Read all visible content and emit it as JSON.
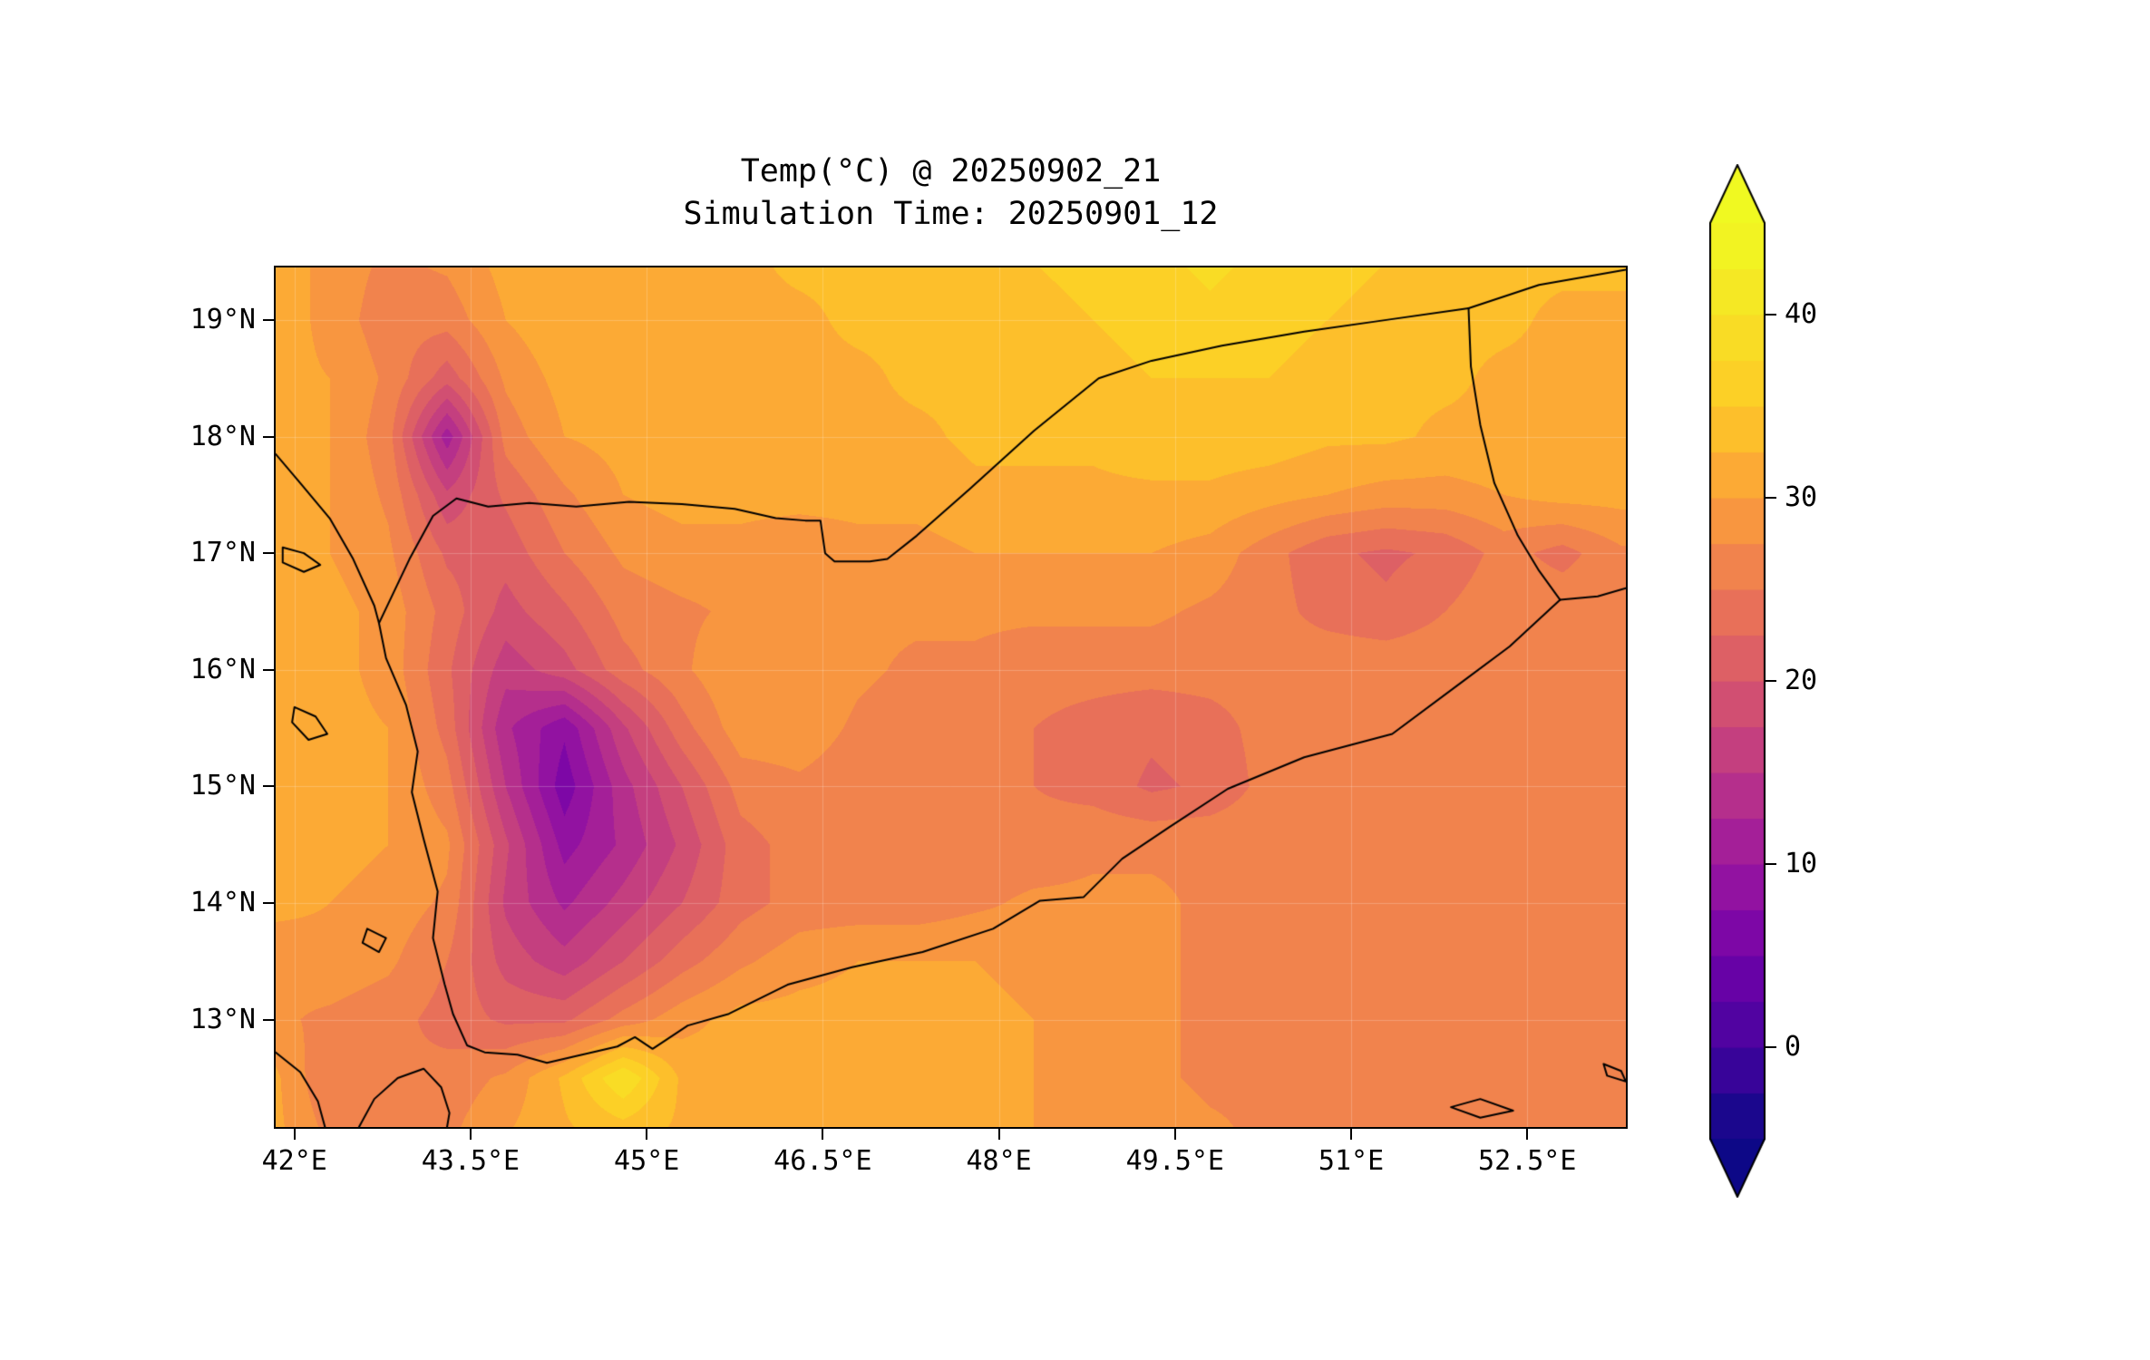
{
  "chart_data": {
    "type": "heatmap",
    "title": "Temp(°C) @ 20250902_21",
    "subtitle": "Simulation Time: 20250901_12",
    "variable": "Temperature (°C)",
    "valid_time_label": "20250902_21",
    "simulation_time_label": "20250901_12",
    "extent": {
      "lon_min": 41.84,
      "lon_max": 53.34,
      "lat_min": 12.08,
      "lat_max": 19.45
    },
    "x_ticks": [
      {
        "value": 42.0,
        "label": "42°E"
      },
      {
        "value": 43.5,
        "label": "43.5°E"
      },
      {
        "value": 45.0,
        "label": "45°E"
      },
      {
        "value": 46.5,
        "label": "46.5°E"
      },
      {
        "value": 48.0,
        "label": "48°E"
      },
      {
        "value": 49.5,
        "label": "49.5°E"
      },
      {
        "value": 51.0,
        "label": "51°E"
      },
      {
        "value": 52.5,
        "label": "52.5°E"
      }
    ],
    "y_ticks": [
      {
        "value": 19.0,
        "label": "19°N"
      },
      {
        "value": 18.0,
        "label": "18°N"
      },
      {
        "value": 17.0,
        "label": "17°N"
      },
      {
        "value": 16.0,
        "label": "16°N"
      },
      {
        "value": 15.0,
        "label": "15°N"
      },
      {
        "value": 14.0,
        "label": "14°N"
      },
      {
        "value": 13.0,
        "label": "13°N"
      }
    ],
    "colorbar": {
      "vmin": -5,
      "vmax": 45,
      "step": 2.5,
      "extend": "both",
      "ticks": [
        {
          "value": 40,
          "label": "40"
        },
        {
          "value": 30,
          "label": "30"
        },
        {
          "value": 20,
          "label": "20"
        },
        {
          "value": 10,
          "label": "10"
        },
        {
          "value": 0,
          "label": "0"
        }
      ]
    },
    "colormap_stops": [
      [
        0.0,
        "#0d0887"
      ],
      [
        0.1,
        "#46039f"
      ],
      [
        0.2,
        "#7201a8"
      ],
      [
        0.3,
        "#9c179e"
      ],
      [
        0.4,
        "#bd3786"
      ],
      [
        0.5,
        "#d8576b"
      ],
      [
        0.6,
        "#ed7953"
      ],
      [
        0.7,
        "#fb9f3a"
      ],
      [
        0.8,
        "#fdca26"
      ],
      [
        0.9,
        "#f7e225"
      ],
      [
        1.0,
        "#f0f921"
      ]
    ],
    "grid": {
      "lon_start": 41.8,
      "lon_step": 0.5,
      "lat_start": 19.5,
      "lat_step": -0.5,
      "ncols": 24,
      "nrows": 16,
      "values": [
        [
          32,
          29,
          27,
          28,
          31,
          32,
          32,
          32,
          32,
          33,
          33,
          33,
          34,
          35,
          36,
          37,
          38,
          37,
          36,
          35,
          34,
          33,
          33,
          33
        ],
        [
          32,
          29,
          26,
          26,
          30,
          32,
          32,
          32,
          32,
          32,
          33,
          33,
          33,
          34,
          35,
          36,
          37,
          36,
          35,
          34,
          33,
          33,
          32,
          32
        ],
        [
          31,
          30,
          27,
          21,
          28,
          31,
          32,
          32,
          32,
          32,
          32,
          33,
          33,
          33,
          34,
          35,
          35,
          35,
          34,
          33,
          33,
          32,
          32,
          32
        ],
        [
          31,
          30,
          26,
          11,
          26,
          30,
          31,
          32,
          32,
          32,
          32,
          32,
          33,
          33,
          33,
          34,
          34,
          34,
          33,
          33,
          32,
          32,
          32,
          32
        ],
        [
          31,
          30,
          27,
          18,
          23,
          27,
          30,
          31,
          31,
          31,
          31,
          31,
          32,
          32,
          32,
          32,
          32,
          31,
          30,
          29,
          29,
          30,
          31,
          31
        ],
        [
          31,
          30,
          28,
          22,
          21,
          25,
          28,
          29,
          29,
          28,
          29,
          29,
          30,
          30,
          30,
          30,
          29,
          26,
          23,
          22,
          23,
          26,
          24,
          27
        ],
        [
          31,
          31,
          29,
          24,
          19,
          22,
          26,
          27,
          28,
          28,
          28,
          28,
          28,
          28,
          28,
          28,
          27,
          26,
          24,
          23,
          25,
          27,
          27,
          27
        ],
        [
          31,
          31,
          29,
          23,
          16,
          19,
          24,
          27,
          30,
          30,
          28,
          27,
          27,
          26,
          26,
          26,
          26,
          26,
          27,
          27,
          27,
          27,
          27,
          27
        ],
        [
          32,
          31,
          30,
          24,
          13,
          8,
          17,
          24,
          29,
          29,
          27,
          26,
          26,
          25,
          24,
          23,
          24,
          26,
          27,
          27,
          27,
          27,
          27,
          27
        ],
        [
          32,
          31,
          30,
          26,
          15,
          6,
          14,
          20,
          26,
          27,
          26,
          25,
          25,
          25,
          24,
          22,
          23,
          26,
          27,
          27,
          27,
          27,
          27,
          27
        ],
        [
          32,
          31,
          30,
          28,
          18,
          9,
          13,
          18,
          24,
          26,
          26,
          25,
          26,
          26,
          27,
          27,
          27,
          27,
          27,
          27,
          27,
          27,
          27,
          27
        ],
        [
          31,
          30,
          29,
          27,
          17,
          12,
          16,
          20,
          24,
          26,
          26,
          26,
          27,
          28,
          28,
          28,
          27,
          27,
          27,
          27,
          27,
          27,
          27,
          27
        ],
        [
          28,
          29,
          28,
          25,
          19,
          16,
          20,
          24,
          27,
          29,
          30,
          30,
          30,
          29,
          28,
          28,
          27,
          27,
          27,
          27,
          27,
          27,
          27,
          27
        ],
        [
          28,
          27,
          26,
          24,
          22,
          22,
          26,
          29,
          31,
          31,
          31,
          31,
          31,
          30,
          29,
          28,
          27,
          27,
          27,
          27,
          27,
          27,
          27,
          27
        ],
        [
          31,
          25,
          25,
          26,
          28,
          33,
          40,
          32,
          31,
          31,
          31,
          31,
          31,
          30,
          29,
          28,
          27,
          27,
          27,
          27,
          27,
          27,
          27,
          27
        ],
        [
          31,
          27,
          26,
          27,
          30,
          32,
          33,
          32,
          31,
          31,
          31,
          31,
          31,
          30,
          29,
          29,
          28,
          27,
          27,
          27,
          27,
          27,
          27,
          27
        ]
      ]
    },
    "outlines": {
      "lines": [
        {
          "name": "coastline-yemen",
          "points": [
            [
              41.84,
              17.85
            ],
            [
              42.05,
              17.6
            ],
            [
              42.3,
              17.3
            ],
            [
              42.5,
              16.95
            ],
            [
              42.68,
              16.55
            ],
            [
              42.72,
              16.4
            ],
            [
              42.78,
              16.1
            ],
            [
              42.95,
              15.7
            ],
            [
              43.05,
              15.3
            ],
            [
              43.0,
              14.95
            ],
            [
              43.1,
              14.55
            ],
            [
              43.22,
              14.1
            ],
            [
              43.18,
              13.7
            ],
            [
              43.28,
              13.3
            ],
            [
              43.35,
              13.05
            ],
            [
              43.47,
              12.78
            ],
            [
              43.62,
              12.72
            ],
            [
              43.9,
              12.7
            ],
            [
              44.15,
              12.63
            ],
            [
              44.45,
              12.7
            ],
            [
              44.75,
              12.77
            ],
            [
              44.9,
              12.85
            ],
            [
              45.05,
              12.75
            ],
            [
              45.35,
              12.95
            ],
            [
              45.7,
              13.05
            ],
            [
              46.2,
              13.3
            ],
            [
              46.75,
              13.45
            ],
            [
              47.35,
              13.58
            ],
            [
              47.95,
              13.78
            ],
            [
              48.35,
              14.02
            ],
            [
              48.72,
              14.05
            ],
            [
              49.05,
              14.38
            ],
            [
              49.45,
              14.65
            ],
            [
              49.95,
              14.98
            ],
            [
              50.6,
              15.25
            ],
            [
              51.35,
              15.45
            ],
            [
              51.95,
              15.9
            ],
            [
              52.35,
              16.2
            ],
            [
              52.78,
              16.6
            ],
            [
              53.1,
              16.63
            ],
            [
              53.34,
              16.7
            ]
          ]
        },
        {
          "name": "border-yemen-saudi",
          "points": [
            [
              42.72,
              16.4
            ],
            [
              42.98,
              16.95
            ],
            [
              43.18,
              17.32
            ],
            [
              43.38,
              17.47
            ],
            [
              43.65,
              17.4
            ],
            [
              44.0,
              17.43
            ],
            [
              44.4,
              17.4
            ],
            [
              44.85,
              17.44
            ],
            [
              45.3,
              17.42
            ],
            [
              45.75,
              17.38
            ],
            [
              46.1,
              17.3
            ],
            [
              46.35,
              17.28
            ],
            [
              46.48,
              17.28
            ],
            [
              46.52,
              17.0
            ],
            [
              46.6,
              16.93
            ],
            [
              46.9,
              16.93
            ],
            [
              47.05,
              16.95
            ],
            [
              47.3,
              17.15
            ],
            [
              47.75,
              17.55
            ],
            [
              48.3,
              18.05
            ],
            [
              48.85,
              18.5
            ],
            [
              49.3,
              18.65
            ],
            [
              49.9,
              18.78
            ],
            [
              50.6,
              18.9
            ],
            [
              51.3,
              19.0
            ],
            [
              52.0,
              19.1
            ]
          ]
        },
        {
          "name": "border-saudi-oman",
          "points": [
            [
              52.0,
              19.1
            ],
            [
              52.6,
              19.3
            ],
            [
              53.34,
              19.43
            ]
          ]
        },
        {
          "name": "border-yemen-oman",
          "points": [
            [
              52.0,
              19.1
            ],
            [
              52.02,
              18.6
            ],
            [
              52.1,
              18.1
            ],
            [
              52.22,
              17.6
            ],
            [
              52.42,
              17.15
            ],
            [
              52.6,
              16.85
            ],
            [
              52.78,
              16.6
            ]
          ]
        },
        {
          "name": "coastline-africa-djibouti",
          "points": [
            [
              42.55,
              12.08
            ],
            [
              42.68,
              12.32
            ],
            [
              42.88,
              12.5
            ],
            [
              43.1,
              12.58
            ],
            [
              43.25,
              12.42
            ],
            [
              43.32,
              12.2
            ],
            [
              43.3,
              12.08
            ]
          ]
        },
        {
          "name": "coastline-africa-west",
          "points": [
            [
              41.84,
              12.72
            ],
            [
              42.05,
              12.55
            ],
            [
              42.2,
              12.3
            ],
            [
              42.26,
              12.08
            ]
          ]
        }
      ],
      "islands": [
        {
          "name": "island-farasan",
          "points": [
            [
              41.9,
              17.05
            ],
            [
              42.08,
              17.0
            ],
            [
              42.22,
              16.9
            ],
            [
              42.08,
              16.84
            ],
            [
              41.9,
              16.92
            ]
          ]
        },
        {
          "name": "island-zubair",
          "points": [
            [
              42.0,
              15.68
            ],
            [
              42.18,
              15.6
            ],
            [
              42.28,
              15.45
            ],
            [
              42.12,
              15.4
            ],
            [
              41.98,
              15.55
            ]
          ]
        },
        {
          "name": "island-hanish",
          "points": [
            [
              42.62,
              13.78
            ],
            [
              42.78,
              13.7
            ],
            [
              42.72,
              13.58
            ],
            [
              42.58,
              13.66
            ]
          ]
        },
        {
          "name": "island-abd-al-kuri",
          "points": [
            [
              51.85,
              12.25
            ],
            [
              52.1,
              12.32
            ],
            [
              52.38,
              12.22
            ],
            [
              52.1,
              12.16
            ]
          ]
        },
        {
          "name": "island-east-edge",
          "points": [
            [
              53.15,
              12.62
            ],
            [
              53.3,
              12.56
            ],
            [
              53.34,
              12.47
            ],
            [
              53.18,
              12.52
            ]
          ]
        }
      ]
    }
  }
}
